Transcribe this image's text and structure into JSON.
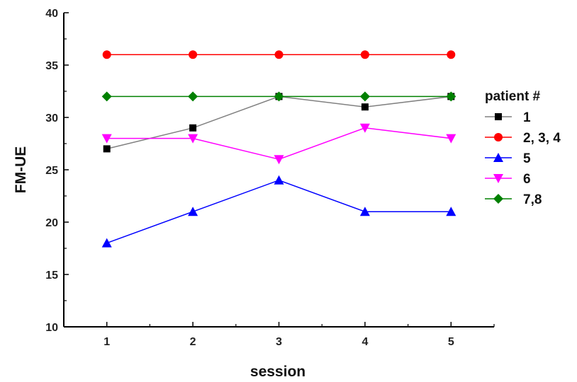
{
  "chart_data": {
    "type": "line",
    "title": "",
    "xlabel": "session",
    "ylabel": "FM-UE",
    "x": [
      1,
      2,
      3,
      4,
      5
    ],
    "xticks": [
      "1",
      "2",
      "3",
      "4",
      "5"
    ],
    "xlim": [
      0.5,
      5.5
    ],
    "ylim": [
      10,
      40
    ],
    "yticks": [
      "10",
      "15",
      "20",
      "25",
      "30",
      "35",
      "40"
    ],
    "grid": false,
    "legend_title": "patient #",
    "legend_position": "right",
    "series": [
      {
        "name": "1",
        "values": [
          27,
          29,
          32,
          31,
          32
        ],
        "color": "#000000",
        "line_color": "#808080",
        "marker": "square"
      },
      {
        "name": "2, 3, 4",
        "values": [
          36,
          36,
          36,
          36,
          36
        ],
        "color": "#ff0000",
        "line_color": "#ff0000",
        "marker": "circle"
      },
      {
        "name": "5",
        "values": [
          18,
          21,
          24,
          21,
          21
        ],
        "color": "#0000ff",
        "line_color": "#0000ff",
        "marker": "triangle-up"
      },
      {
        "name": "6",
        "values": [
          28,
          28,
          26,
          29,
          28
        ],
        "color": "#ff00ff",
        "line_color": "#ff00ff",
        "marker": "triangle-down"
      },
      {
        "name": "7,8",
        "values": [
          32,
          32,
          32,
          32,
          32
        ],
        "color": "#008000",
        "line_color": "#008000",
        "marker": "diamond"
      }
    ]
  }
}
